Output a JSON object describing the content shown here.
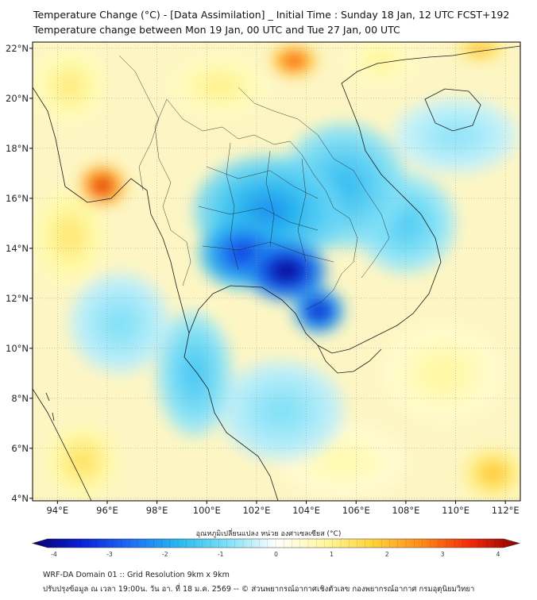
{
  "title_line1": "Temperature Change (°C) - [Data Assimilation] _ Initial Time : Sunday 18 Jan, 12 UTC FCST+192",
  "title_line2": "Temperature change between Mon 19 Jan, 00 UTC and Tue 27 Jan, 00 UTC",
  "map": {
    "lon_ticks": [
      "94°E",
      "96°E",
      "98°E",
      "100°E",
      "102°E",
      "104°E",
      "106°E",
      "108°E",
      "110°E",
      "112°E"
    ],
    "lat_ticks": [
      "22°N",
      "20°N",
      "18°N",
      "16°N",
      "14°N",
      "12°N",
      "10°N",
      "8°N",
      "6°N",
      "4°N"
    ],
    "lon_values": [
      94,
      96,
      98,
      100,
      102,
      104,
      106,
      108,
      110,
      112
    ],
    "lat_values": [
      22,
      20,
      18,
      16,
      14,
      12,
      10,
      8,
      6,
      4
    ],
    "lon_range": [
      93.0,
      112.6
    ],
    "lat_range": [
      3.9,
      22.25
    ],
    "anomalies": [
      {
        "lon": 103.2,
        "lat": 13.1,
        "value": -4.0,
        "spread_lon": 1.6,
        "spread_lat": 1.2
      },
      {
        "lon": 104.5,
        "lat": 11.5,
        "value": -3.5,
        "spread_lon": 1.0,
        "spread_lat": 0.9
      },
      {
        "lon": 101.5,
        "lat": 13.8,
        "value": -3.0,
        "spread_lon": 1.8,
        "spread_lat": 1.4
      },
      {
        "lon": 102.5,
        "lat": 15.5,
        "value": -2.0,
        "spread_lon": 3.0,
        "spread_lat": 2.2
      },
      {
        "lon": 105.5,
        "lat": 16.5,
        "value": -1.5,
        "spread_lon": 2.5,
        "spread_lat": 2.5
      },
      {
        "lon": 108.0,
        "lat": 15.0,
        "value": -1.2,
        "spread_lon": 2.0,
        "spread_lat": 2.0
      },
      {
        "lon": 99.5,
        "lat": 9.0,
        "value": -1.3,
        "spread_lon": 1.5,
        "spread_lat": 2.5
      },
      {
        "lon": 96.5,
        "lat": 11.0,
        "value": -0.8,
        "spread_lon": 2.0,
        "spread_lat": 2.0
      },
      {
        "lon": 103.0,
        "lat": 7.5,
        "value": -0.8,
        "spread_lon": 2.5,
        "spread_lat": 2.0
      },
      {
        "lon": 110.0,
        "lat": 18.5,
        "value": -0.7,
        "spread_lon": 2.5,
        "spread_lat": 1.5
      },
      {
        "lon": 95.8,
        "lat": 16.5,
        "value": 3.6,
        "spread_lon": 0.9,
        "spread_lat": 0.8
      },
      {
        "lon": 103.5,
        "lat": 21.5,
        "value": 3.2,
        "spread_lon": 0.9,
        "spread_lat": 0.6
      },
      {
        "lon": 94.5,
        "lat": 14.5,
        "value": 1.2,
        "spread_lon": 1.5,
        "spread_lat": 2.0
      },
      {
        "lon": 94.5,
        "lat": 20.5,
        "value": 1.1,
        "spread_lon": 1.5,
        "spread_lat": 1.5
      },
      {
        "lon": 100.5,
        "lat": 20.5,
        "value": 1.0,
        "spread_lon": 2.0,
        "spread_lat": 1.2
      },
      {
        "lon": 111.5,
        "lat": 5.0,
        "value": 1.8,
        "spread_lon": 1.2,
        "spread_lat": 1.0
      },
      {
        "lon": 95.0,
        "lat": 5.5,
        "value": 1.3,
        "spread_lon": 1.5,
        "spread_lat": 1.5
      },
      {
        "lon": 100.0,
        "lat": 11.0,
        "value": 0.9,
        "spread_lon": 0.8,
        "spread_lat": 0.8
      },
      {
        "lon": 109.5,
        "lat": 9.0,
        "value": 0.8,
        "spread_lon": 2.5,
        "spread_lat": 2.0
      },
      {
        "lon": 105.5,
        "lat": 5.5,
        "value": 0.7,
        "spread_lon": 2.5,
        "spread_lat": 1.5
      },
      {
        "lon": 111.0,
        "lat": 22.0,
        "value": 2.0,
        "spread_lon": 1.0,
        "spread_lat": 0.5
      },
      {
        "lon": 107.0,
        "lat": 21.5,
        "value": 0.9,
        "spread_lon": 1.5,
        "spread_lat": 1.0
      }
    ]
  },
  "colorbar": {
    "title": "อุณหภูมิเปลี่ยนแปลง หน่วย องศาเซลเซียส (°C)",
    "tick_labels": [
      "-4",
      "-3",
      "-2",
      "-1",
      "0",
      "1",
      "2",
      "3",
      "4"
    ],
    "tick_values": [
      -4,
      -3,
      -2,
      -1,
      0,
      1,
      2,
      3,
      4
    ],
    "range": [
      -4,
      4
    ],
    "colors": [
      "#08006b",
      "#0a20d8",
      "#1e6cf0",
      "#28b8f0",
      "#7fe0f7",
      "#ffffff",
      "#fff8a0",
      "#ffd23a",
      "#ff8a1a",
      "#f02a0a",
      "#8a0000"
    ]
  },
  "footer_line1": "WRF-DA Domain 01 :: Grid Resolution 9km x 9km",
  "footer_line2": "ปรับปรุงข้อมูล ณ เวลา 19:00น. วัน อา. ที่ 18 ม.ค. 2569 -- © ส่วนพยากรณ์อากาศเชิงตัวเลข กองพยากรณ์อากาศ กรมอุตุนิยมวิทยา"
}
